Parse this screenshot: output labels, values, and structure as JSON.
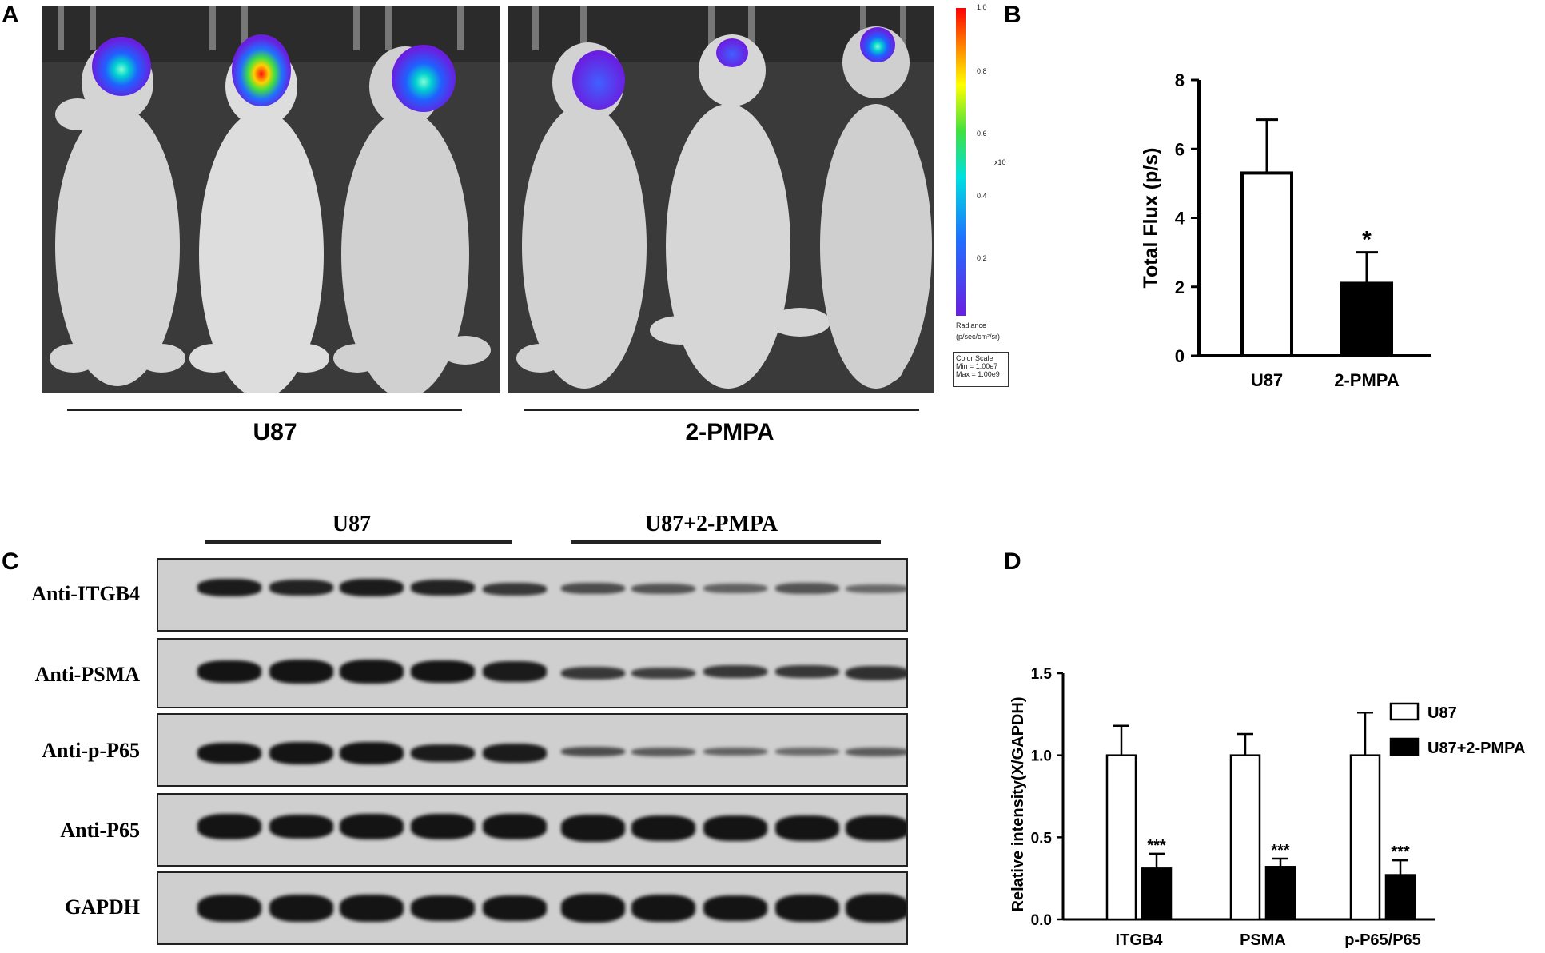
{
  "panels": {
    "a": {
      "letter": "A",
      "groups": [
        "U87",
        "2-PMPA"
      ],
      "colorbar": {
        "ticks": [
          "1.0",
          "0.8",
          "0.6",
          "0.4",
          "0.2"
        ],
        "exponent": "x10",
        "unit_line1": "Radiance",
        "unit_line2": "(p/sec/cm²/sr)",
        "scale_title": "Color Scale",
        "scale_min": "Min = 1.00e7",
        "scale_max": "Max = 1.00e9"
      },
      "colors": {
        "background": "#3a3a3a",
        "mouse": "#d8d8d8"
      }
    },
    "b": {
      "letter": "B"
    },
    "c": {
      "letter": "C",
      "groups": [
        "U87",
        "U87+2-PMPA"
      ],
      "rows": [
        "Anti-ITGB4",
        "Anti-PSMA",
        "Anti-p-P65",
        "Anti-P65",
        "GAPDH"
      ]
    },
    "d": {
      "letter": "D"
    }
  },
  "chart_data": [
    {
      "type": "bar",
      "panel": "B",
      "categories": [
        "U87",
        "2-PMPA"
      ],
      "values": [
        5.3,
        2.1
      ],
      "errors": [
        1.55,
        0.9
      ],
      "fills": [
        "#ffffff",
        "#000000"
      ],
      "annotations": [
        "",
        "*"
      ],
      "ylabel": "Total Flux (p/s)",
      "ylim": [
        0,
        8
      ],
      "yticks": [
        "0",
        "2",
        "4",
        "6",
        "8"
      ]
    },
    {
      "type": "bar",
      "panel": "D",
      "categories": [
        "ITGB4",
        "PSMA",
        "p-P65/P65"
      ],
      "series": [
        {
          "name": "U87",
          "values": [
            1.0,
            1.0,
            1.0
          ],
          "errors": [
            0.18,
            0.13,
            0.26
          ],
          "fill": "#ffffff"
        },
        {
          "name": "U87+2-PMPA",
          "values": [
            0.31,
            0.32,
            0.27
          ],
          "errors": [
            0.09,
            0.05,
            0.09
          ],
          "fill": "#000000"
        }
      ],
      "annotations": [
        "***",
        "***",
        "***"
      ],
      "ylabel": "Relative intensity(X/GAPDH)",
      "ylim": [
        0,
        1.5
      ],
      "yticks": [
        "0.0",
        "0.5",
        "1.0",
        "1.5"
      ],
      "legend": "right"
    }
  ]
}
